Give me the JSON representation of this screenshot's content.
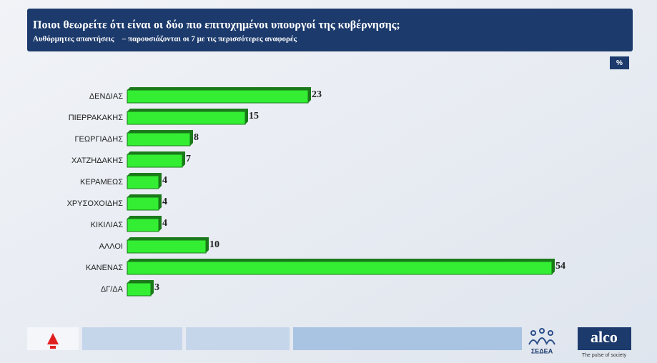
{
  "chart_data": {
    "type": "bar",
    "title": "Ποιοι θεωρείτε ότι είναι οι δύο πιο επιτυχημένοι υπουργοί της κυβέρνησης;",
    "subtitle": "Αυθόρμητες απαντήσεις    – παρουσιάζονται οι 7 με τις περισσότερες αναφορές",
    "unit_badge": "%",
    "categories": [
      "ΔΕΝΔΙΑΣ",
      "ΠΙΕΡΡΑΚΑΚΗΣ",
      "ΓΕΩΡΓΙΑΔΗΣ",
      "ΧΑΤΖΗΔΑΚΗΣ",
      "ΚΕΡΑΜΕΩΣ",
      "ΧΡΥΣΟΧΟΙΔΗΣ",
      "ΚΙΚΙΛΙΑΣ",
      "ΑΛΛΟΙ",
      "ΚΑΝΕΝΑΣ",
      "ΔΓ/ΔΑ"
    ],
    "values": [
      23,
      15,
      8,
      7,
      4,
      4,
      4,
      10,
      54,
      3
    ],
    "color": "#33ee33"
  },
  "footer": {
    "sedea": "ΣΕΔΕΑ",
    "alco": "alco",
    "alco_tagline": "The pulse of society"
  }
}
